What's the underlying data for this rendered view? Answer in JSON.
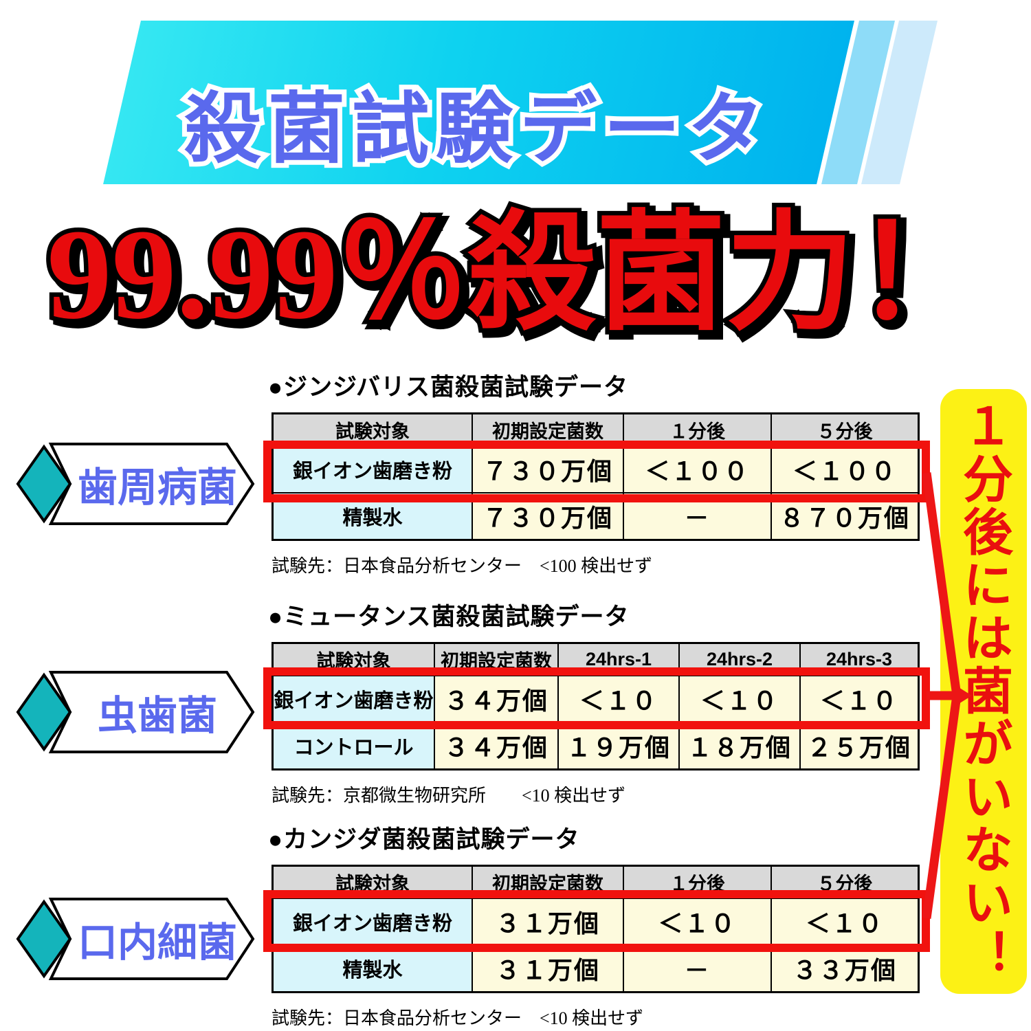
{
  "banner": {
    "title": "殺菌試験データ"
  },
  "headline": {
    "text": "99.99％殺菌力！"
  },
  "side_labels": [
    {
      "label": "歯周病菌"
    },
    {
      "label": "虫歯菌"
    },
    {
      "label": "口内細菌"
    }
  ],
  "tables": [
    {
      "title": "●ジンジバリス菌殺菌試験データ",
      "headers": [
        "試験対象",
        "初期設定菌数",
        "１分後",
        "５分後"
      ],
      "rows": [
        {
          "cells": [
            "銀イオン歯磨き粉",
            "７３０万個",
            "＜１００",
            "＜１００"
          ],
          "highlighted": true
        },
        {
          "cells": [
            "精製水",
            "７３０万個",
            "－",
            "８７０万個"
          ],
          "highlighted": false
        }
      ],
      "footnote": "試験先：日本食品分析センター　<100 検出せず"
    },
    {
      "title": "●ミュータンス菌殺菌試験データ",
      "headers": [
        "試験対象",
        "初期設定菌数",
        "24hrs-1",
        "24hrs-2",
        "24hrs-3"
      ],
      "rows": [
        {
          "cells": [
            "銀イオン歯磨き粉",
            "３４万個",
            "＜１０",
            "＜１０",
            "＜１０"
          ],
          "highlighted": true
        },
        {
          "cells": [
            "コントロール",
            "３４万個",
            "１９万個",
            "１８万個",
            "２５万個"
          ],
          "highlighted": false
        }
      ],
      "footnote": "試験先：京都微生物研究所　　<10 検出せず"
    },
    {
      "title": "●カンジダ菌殺菌試験データ",
      "headers": [
        "試験対象",
        "初期設定菌数",
        "１分後",
        "５分後"
      ],
      "rows": [
        {
          "cells": [
            "銀イオン歯磨き粉",
            "３１万個",
            "＜１０",
            "＜１０"
          ],
          "highlighted": true
        },
        {
          "cells": [
            "精製水",
            "３１万個",
            "－",
            "３３万個"
          ],
          "highlighted": false
        }
      ],
      "footnote": "試験先：日本食品分析センター　<10 検出せず"
    }
  ],
  "callout": {
    "text": "１分後には菌がいない！"
  },
  "colors": {
    "banner_gradient_start": "#35e7f2",
    "banner_gradient_end": "#00b3ee",
    "banner_stripe_light": "#8edcf8",
    "banner_stripe_lighter": "#cdeafb",
    "title_blue": "#5a69ed",
    "headline_red": "#e80b0d",
    "highlight_red": "#f1120e",
    "callout_yellow": "#fcf115",
    "diamond_teal": "#14b4bb",
    "table_header_gray": "#d9d9d9",
    "cell_cyan": "#d8f5fb",
    "cell_cream": "#fdfadd"
  }
}
